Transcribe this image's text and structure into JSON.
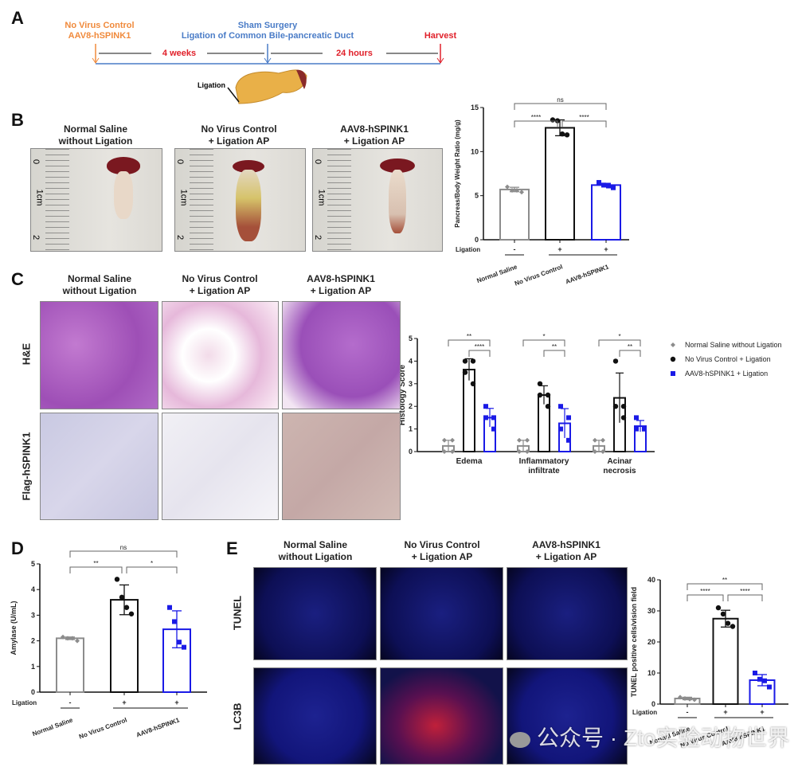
{
  "panels": {
    "A": "A",
    "B": "B",
    "C": "C",
    "D": "D",
    "E": "E"
  },
  "timeline": {
    "start_line1": "No Virus Control",
    "start_line2": "AAV8-hSPINK1",
    "mid_line1": "Sham Surgery",
    "mid_line2": "Ligation of Common Bile-pancreatic Duct",
    "end": "Harvest",
    "interval1": "4 weeks",
    "interval2": "24 hours",
    "ligation_label": "Ligation",
    "colors": {
      "start": "#f08a3c",
      "mid": "#4a7cc7",
      "end": "#e0202a"
    }
  },
  "group_titles": [
    {
      "line1": "Normal Saline",
      "line2": "without Ligation"
    },
    {
      "line1": "No Virus Control",
      "line2": "+ Ligation AP"
    },
    {
      "line1": "AAV8-hSPINK1",
      "line2": "+ Ligation AP"
    }
  ],
  "photo_ruler": [
    "0",
    "1cm",
    "2"
  ],
  "panel_c_rows": [
    "H&E",
    "Flag-hSPINK1"
  ],
  "panel_e_rows": [
    "TUNEL",
    "LC3B"
  ],
  "watermark": "公众号 · Zto实验动物世界",
  "chart_data": [
    {
      "id": "B",
      "type": "bar",
      "ylabel": "Pancreas/Body Weight Ratio (mg/g)",
      "ylim": [
        0,
        15
      ],
      "yticks": [
        0,
        5,
        10,
        15
      ],
      "categories": [
        "Normal Saline",
        "No Virus Control",
        "AAV8-hSPINK1"
      ],
      "ligation": {
        "label": "Ligation",
        "values": [
          "-",
          "+",
          "+"
        ]
      },
      "values": [
        5.7,
        12.7,
        6.2
      ],
      "errors": [
        0.25,
        0.9,
        0.2
      ],
      "points": [
        [
          6.0,
          5.6,
          5.6,
          5.4
        ],
        [
          13.6,
          13.5,
          12.0,
          11.9
        ],
        [
          6.5,
          6.2,
          6.1,
          5.9
        ]
      ],
      "colors": [
        "#8c8c8c",
        "#111111",
        "#1a1ae6"
      ],
      "brackets": [
        {
          "from": 0,
          "to": 1,
          "label": "****"
        },
        {
          "from": 1,
          "to": 2,
          "label": "****"
        },
        {
          "from": 0,
          "to": 2,
          "label": "ns"
        }
      ]
    },
    {
      "id": "C",
      "type": "bar",
      "ylabel": "Histology Score",
      "ylim": [
        0,
        5
      ],
      "yticks": [
        0,
        1,
        2,
        3,
        4,
        5
      ],
      "categories": [
        "Edema",
        "Inflammatory infiltrate",
        "Acinar necrosis"
      ],
      "category_lines": [
        [
          "Edema"
        ],
        [
          "Inflammatory",
          "infiltrate"
        ],
        [
          "Acinar",
          "necrosis"
        ]
      ],
      "series": [
        {
          "name": "Normal Saline without Ligation",
          "color": "#8c8c8c",
          "values": [
            0.25,
            0.25,
            0.25
          ],
          "errors": [
            0.25,
            0.25,
            0.25
          ],
          "points": [
            [
              0.5,
              0.5,
              0,
              0
            ],
            [
              0.5,
              0.5,
              0,
              0
            ],
            [
              0.5,
              0.5,
              0,
              0
            ]
          ]
        },
        {
          "name": "No Virus Control + Ligation",
          "color": "#111111",
          "values": [
            3.625,
            2.5,
            2.375
          ],
          "errors": [
            0.48,
            0.41,
            1.1
          ],
          "points": [
            [
              4,
              4,
              3.5,
              3
            ],
            [
              3,
              2.5,
              2.5,
              2
            ],
            [
              4,
              2,
              2,
              1.5
            ]
          ]
        },
        {
          "name": "AAV8-hSPINK1 + Ligation",
          "color": "#1a1ae6",
          "values": [
            1.5,
            1.25,
            1.125
          ],
          "errors": [
            0.41,
            0.65,
            0.25
          ],
          "points": [
            [
              2,
              1.5,
              1.5,
              1
            ],
            [
              2,
              1.5,
              1,
              0.5
            ],
            [
              1.5,
              1,
              1,
              1
            ]
          ]
        }
      ],
      "brackets": [
        [
          {
            "from": 0,
            "to": 2,
            "label": "**"
          },
          {
            "from": 1,
            "to": 2,
            "label": "****"
          }
        ],
        [
          {
            "from": 0,
            "to": 2,
            "label": "*"
          },
          {
            "from": 1,
            "to": 2,
            "label": "**"
          }
        ],
        [
          {
            "from": 0,
            "to": 2,
            "label": "*"
          },
          {
            "from": 1,
            "to": 2,
            "label": "**"
          }
        ]
      ],
      "legend": "right"
    },
    {
      "id": "D",
      "type": "bar",
      "ylabel": "Amylase (U/mL)",
      "ylim": [
        0,
        5
      ],
      "yticks": [
        0,
        1,
        2,
        3,
        4,
        5
      ],
      "categories": [
        "Normal Saline",
        "No Virus Control",
        "AAV8-hSPINK1"
      ],
      "ligation": {
        "label": "Ligation",
        "values": [
          "-",
          "+",
          "+"
        ]
      },
      "values": [
        2.1,
        3.6,
        2.45
      ],
      "errors": [
        0.05,
        0.58,
        0.72
      ],
      "points": [
        [
          2.15,
          2.1,
          2.1,
          2.0
        ],
        [
          4.4,
          3.7,
          3.3,
          3.05
        ],
        [
          3.3,
          2.75,
          1.95,
          1.75
        ]
      ],
      "colors": [
        "#8c8c8c",
        "#111111",
        "#1a1ae6"
      ],
      "brackets": [
        {
          "from": 0,
          "to": 1,
          "label": "**"
        },
        {
          "from": 1,
          "to": 2,
          "label": "*"
        },
        {
          "from": 0,
          "to": 2,
          "label": "ns"
        }
      ]
    },
    {
      "id": "E",
      "type": "bar",
      "ylabel": "TUNEL positive cells/vision field",
      "ylim": [
        0,
        40
      ],
      "yticks": [
        0,
        10,
        20,
        30,
        40
      ],
      "categories": [
        "Normal Saline",
        "No Virus Control",
        "AAV8-hSPINK1"
      ],
      "ligation": {
        "label": "Ligation",
        "values": [
          "-",
          "+",
          "+"
        ]
      },
      "values": [
        1.8,
        27.5,
        7.7
      ],
      "errors": [
        0.4,
        2.7,
        1.8
      ],
      "points": [
        [
          2.2,
          1.8,
          1.6,
          1.4
        ],
        [
          31,
          29,
          26,
          25
        ],
        [
          10,
          8,
          7.5,
          5.5
        ]
      ],
      "colors": [
        "#8c8c8c",
        "#111111",
        "#1a1ae6"
      ],
      "brackets": [
        {
          "from": 0,
          "to": 1,
          "label": "****"
        },
        {
          "from": 1,
          "to": 2,
          "label": "****"
        },
        {
          "from": 0,
          "to": 2,
          "label": "**"
        }
      ]
    }
  ]
}
